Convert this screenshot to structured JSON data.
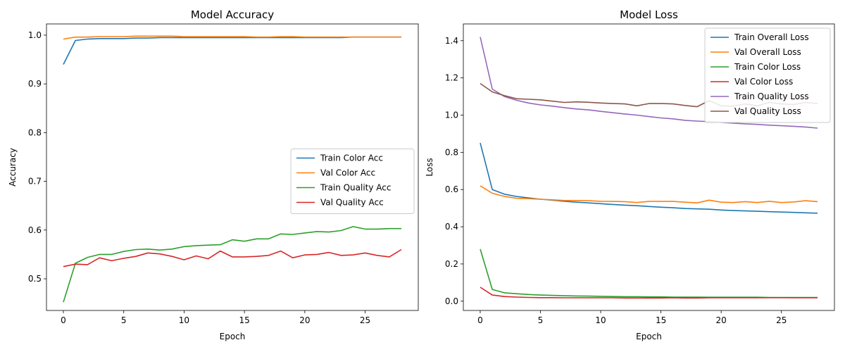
{
  "chart_data": [
    {
      "type": "line",
      "title": "Model Accuracy",
      "xlabel": "Epoch",
      "ylabel": "Accuracy",
      "xlim": [
        -1.4,
        29.4
      ],
      "ylim": [
        0.435,
        1.023
      ],
      "xticks": [
        0,
        5,
        10,
        15,
        20,
        25
      ],
      "yticks": [
        0.5,
        0.6,
        0.7,
        0.8,
        0.9,
        1.0
      ],
      "ytick_labels": [
        "0.5",
        "0.6",
        "0.7",
        "0.8",
        "0.9",
        "1.0"
      ],
      "legend_position": "center-right",
      "x": [
        0,
        1,
        2,
        3,
        4,
        5,
        6,
        7,
        8,
        9,
        10,
        11,
        12,
        13,
        14,
        15,
        16,
        17,
        18,
        19,
        20,
        21,
        22,
        23,
        24,
        25,
        26,
        27,
        28
      ],
      "series": [
        {
          "name": "Train Color Acc",
          "color": "#1f77b4",
          "values": [
            0.94,
            0.989,
            0.992,
            0.993,
            0.993,
            0.993,
            0.994,
            0.994,
            0.995,
            0.995,
            0.995,
            0.995,
            0.995,
            0.995,
            0.995,
            0.995,
            0.995,
            0.995,
            0.995,
            0.995,
            0.995,
            0.995,
            0.995,
            0.995,
            0.996,
            0.996,
            0.996,
            0.996,
            0.996
          ]
        },
        {
          "name": "Val Color Acc",
          "color": "#ff7f0e",
          "values": [
            0.992,
            0.996,
            0.996,
            0.997,
            0.997,
            0.997,
            0.998,
            0.998,
            0.998,
            0.998,
            0.997,
            0.997,
            0.997,
            0.997,
            0.997,
            0.997,
            0.996,
            0.996,
            0.997,
            0.997,
            0.996,
            0.996,
            0.996,
            0.996,
            0.996,
            0.996,
            0.996,
            0.996,
            0.996
          ]
        },
        {
          "name": "Train Quality Acc",
          "color": "#2ca02c",
          "values": [
            0.452,
            0.532,
            0.544,
            0.55,
            0.55,
            0.556,
            0.56,
            0.561,
            0.559,
            0.561,
            0.566,
            0.568,
            0.569,
            0.57,
            0.58,
            0.577,
            0.582,
            0.582,
            0.592,
            0.591,
            0.594,
            0.597,
            0.596,
            0.599,
            0.607,
            0.602,
            0.602,
            0.603,
            0.603
          ]
        },
        {
          "name": "Val Quality Acc",
          "color": "#d62728",
          "values": [
            0.525,
            0.53,
            0.529,
            0.543,
            0.537,
            0.542,
            0.546,
            0.553,
            0.551,
            0.546,
            0.539,
            0.547,
            0.541,
            0.557,
            0.545,
            0.545,
            0.546,
            0.548,
            0.557,
            0.543,
            0.549,
            0.55,
            0.554,
            0.548,
            0.549,
            0.553,
            0.548,
            0.545,
            0.56
          ]
        }
      ]
    },
    {
      "type": "line",
      "title": "Model Loss",
      "xlabel": "Epoch",
      "ylabel": "Loss",
      "xlim": [
        -1.4,
        29.4
      ],
      "ylim": [
        -0.05,
        1.49
      ],
      "xticks": [
        0,
        5,
        10,
        15,
        20,
        25
      ],
      "yticks": [
        0.0,
        0.2,
        0.4,
        0.6,
        0.8,
        1.0,
        1.2,
        1.4
      ],
      "ytick_labels": [
        "0.0",
        "0.2",
        "0.4",
        "0.6",
        "0.8",
        "1.0",
        "1.2",
        "1.4"
      ],
      "legend_position": "top-right",
      "x": [
        0,
        1,
        2,
        3,
        4,
        5,
        6,
        7,
        8,
        9,
        10,
        11,
        12,
        13,
        14,
        15,
        16,
        17,
        18,
        19,
        20,
        21,
        22,
        23,
        24,
        25,
        26,
        27,
        28
      ],
      "series": [
        {
          "name": "Train Overall Loss",
          "color": "#1f77b4",
          "values": [
            0.85,
            0.6,
            0.575,
            0.563,
            0.555,
            0.548,
            0.543,
            0.537,
            0.532,
            0.528,
            0.524,
            0.52,
            0.516,
            0.513,
            0.509,
            0.505,
            0.502,
            0.498,
            0.496,
            0.494,
            0.49,
            0.487,
            0.485,
            0.483,
            0.481,
            0.479,
            0.477,
            0.475,
            0.473
          ]
        },
        {
          "name": "Val Overall Loss",
          "color": "#ff7f0e",
          "values": [
            0.62,
            0.58,
            0.563,
            0.553,
            0.551,
            0.548,
            0.545,
            0.541,
            0.541,
            0.54,
            0.537,
            0.536,
            0.535,
            0.53,
            0.536,
            0.536,
            0.536,
            0.532,
            0.528,
            0.543,
            0.532,
            0.53,
            0.535,
            0.53,
            0.537,
            0.53,
            0.533,
            0.54,
            0.535
          ]
        },
        {
          "name": "Train Color Loss",
          "color": "#2ca02c",
          "values": [
            0.28,
            0.063,
            0.045,
            0.04,
            0.036,
            0.033,
            0.031,
            0.029,
            0.028,
            0.027,
            0.026,
            0.025,
            0.024,
            0.024,
            0.023,
            0.023,
            0.022,
            0.022,
            0.022,
            0.021,
            0.021,
            0.021,
            0.021,
            0.021,
            0.02,
            0.02,
            0.02,
            0.02,
            0.02
          ]
        },
        {
          "name": "Val Color Loss",
          "color": "#d62728",
          "values": [
            0.075,
            0.033,
            0.025,
            0.022,
            0.02,
            0.019,
            0.019,
            0.018,
            0.018,
            0.018,
            0.018,
            0.018,
            0.017,
            0.017,
            0.017,
            0.017,
            0.018,
            0.017,
            0.017,
            0.018,
            0.018,
            0.018,
            0.018,
            0.018,
            0.019,
            0.019,
            0.018,
            0.018,
            0.018
          ]
        },
        {
          "name": "Train Quality Loss",
          "color": "#9467bd",
          "values": [
            1.42,
            1.14,
            1.1,
            1.08,
            1.065,
            1.055,
            1.048,
            1.04,
            1.033,
            1.028,
            1.02,
            1.013,
            1.006,
            1.0,
            0.992,
            0.985,
            0.98,
            0.972,
            0.968,
            0.965,
            0.961,
            0.957,
            0.953,
            0.95,
            0.946,
            0.943,
            0.94,
            0.936,
            0.93
          ]
        },
        {
          "name": "Val Quality Loss",
          "color": "#8c564b",
          "values": [
            1.17,
            1.125,
            1.105,
            1.088,
            1.085,
            1.082,
            1.075,
            1.068,
            1.071,
            1.069,
            1.065,
            1.062,
            1.06,
            1.05,
            1.062,
            1.062,
            1.06,
            1.052,
            1.045,
            1.078,
            1.05,
            1.048,
            1.06,
            1.05,
            1.068,
            1.06,
            1.057,
            1.068,
            1.062
          ]
        }
      ]
    }
  ]
}
